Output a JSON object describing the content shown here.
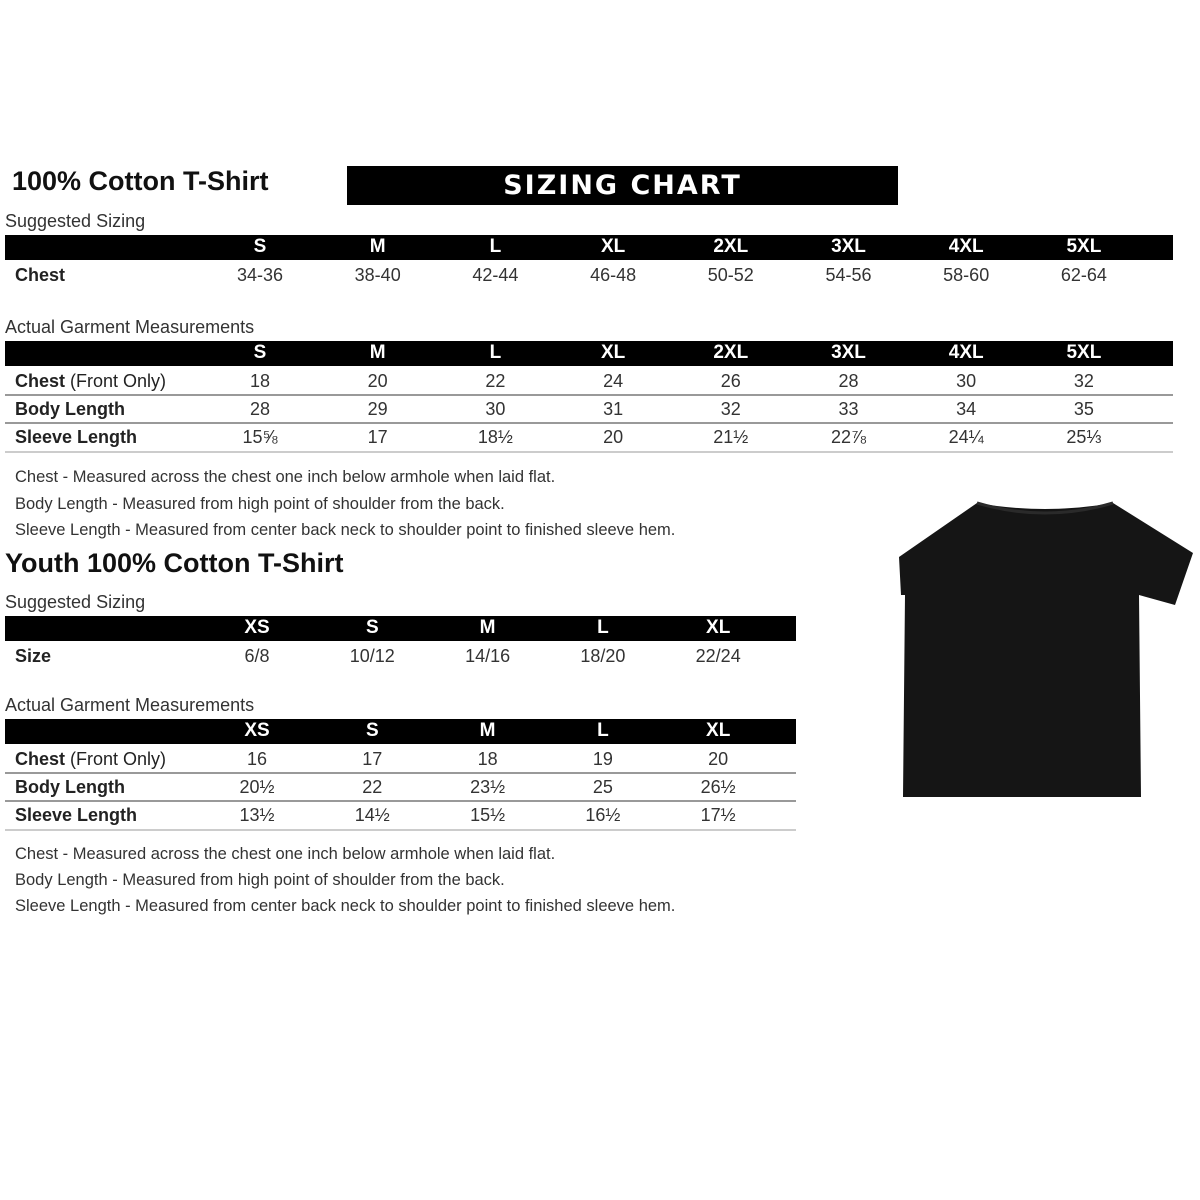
{
  "adult": {
    "title": "100% Cotton T-Shirt",
    "banner": "SIZING CHART",
    "suggested_label": "Suggested Sizing",
    "sizes": [
      "S",
      "M",
      "L",
      "XL",
      "2XL",
      "3XL",
      "4XL",
      "5XL"
    ],
    "suggested_rows": [
      {
        "label": "Chest",
        "values": [
          "34-36",
          "38-40",
          "42-44",
          "46-48",
          "50-52",
          "54-56",
          "58-60",
          "62-64"
        ]
      }
    ],
    "actual_label": "Actual Garment Measurements",
    "actual_rows": [
      {
        "label": "Chest",
        "label_suffix": " (Front Only)",
        "values": [
          "18",
          "20",
          "22",
          "24",
          "26",
          "28",
          "30",
          "32"
        ]
      },
      {
        "label": "Body Length",
        "values": [
          "28",
          "29",
          "30",
          "31",
          "32",
          "33",
          "34",
          "35"
        ]
      },
      {
        "label": "Sleeve Length",
        "values": [
          "15⅝",
          "17",
          "18½",
          "20",
          "21½",
          "22⅞",
          "24¼",
          "25⅓"
        ]
      }
    ],
    "notes": [
      "Chest - Measured across the chest one inch below armhole when laid flat.",
      "Body Length - Measured from high point of shoulder from the back.",
      "Sleeve Length - Measured from center back neck to shoulder point to finished sleeve hem."
    ]
  },
  "youth": {
    "title": "Youth 100% Cotton T-Shirt",
    "suggested_label": "Suggested Sizing",
    "sizes": [
      "XS",
      "S",
      "M",
      "L",
      "XL"
    ],
    "suggested_rows": [
      {
        "label": "Size",
        "values": [
          "6/8",
          "10/12",
          "14/16",
          "18/20",
          "22/24"
        ]
      }
    ],
    "actual_label": "Actual Garment Measurements",
    "actual_rows": [
      {
        "label": "Chest",
        "label_suffix": " (Front Only)",
        "values": [
          "16",
          "17",
          "18",
          "19",
          "20"
        ]
      },
      {
        "label": "Body Length",
        "values": [
          "20½",
          "22",
          "23½",
          "25",
          "26½"
        ]
      },
      {
        "label": "Sleeve Length",
        "values": [
          "13½",
          "14½",
          "15½",
          "16½",
          "17½"
        ]
      }
    ],
    "notes": [
      "Chest - Measured across the chest one inch below armhole when laid flat.",
      "Body Length - Measured from high point of shoulder from the back.",
      "Sleeve Length - Measured from center back neck to shoulder point to finished sleeve hem."
    ]
  },
  "image": {
    "icon": "black-tshirt",
    "color": "#151515"
  }
}
